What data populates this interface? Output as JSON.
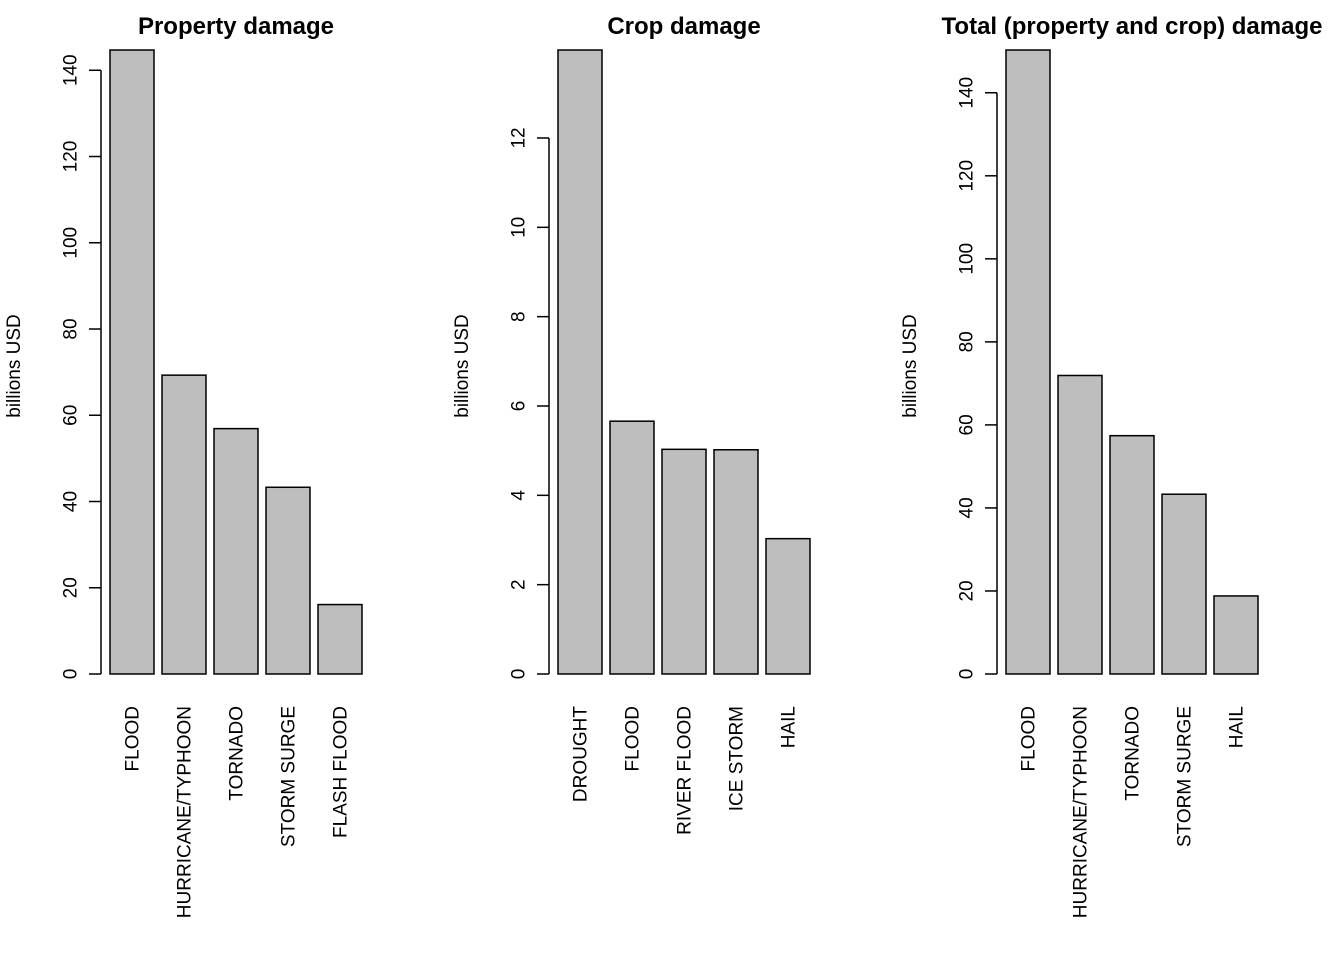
{
  "chart_data": [
    {
      "type": "bar",
      "title": "Property damage",
      "ylabel": "billions USD",
      "categories": [
        "FLOOD",
        "HURRICANE/TYPHOON",
        "TORNADO",
        "STORM SURGE",
        "FLASH FLOOD"
      ],
      "values": [
        144.7,
        69.3,
        56.9,
        43.3,
        16.1
      ],
      "yticks": [
        0,
        20,
        40,
        60,
        80,
        100,
        120,
        140
      ],
      "ylim": [
        0,
        144.7
      ],
      "bar_color": "#bebebe",
      "grid": false,
      "legend": "none"
    },
    {
      "type": "bar",
      "title": "Crop damage",
      "ylabel": "billions USD",
      "categories": [
        "DROUGHT",
        "FLOOD",
        "RIVER FLOOD",
        "ICE STORM",
        "HAIL"
      ],
      "values": [
        13.97,
        5.66,
        5.03,
        5.02,
        3.03
      ],
      "yticks": [
        0,
        2,
        4,
        6,
        8,
        10,
        12
      ],
      "ylim": [
        0,
        13.97
      ],
      "bar_color": "#bebebe",
      "grid": false,
      "legend": "none"
    },
    {
      "type": "bar",
      "title": "Total (property and crop) damage",
      "ylabel": "billions USD",
      "categories": [
        "FLOOD",
        "HURRICANE/TYPHOON",
        "TORNADO",
        "STORM SURGE",
        "HAIL"
      ],
      "values": [
        150.3,
        71.9,
        57.4,
        43.3,
        18.8
      ],
      "yticks": [
        0,
        20,
        40,
        60,
        80,
        100,
        120,
        140
      ],
      "ylim": [
        0,
        150.3
      ],
      "bar_color": "#bebebe",
      "grid": false,
      "legend": "none"
    }
  ]
}
